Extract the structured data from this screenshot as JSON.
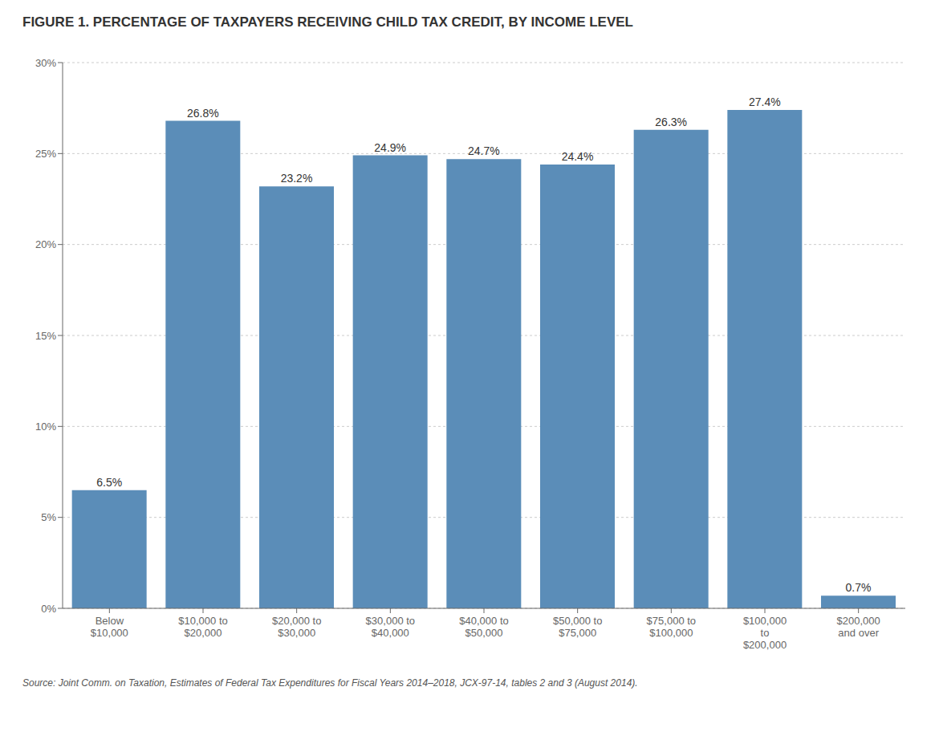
{
  "chart_data": {
    "type": "bar",
    "title": "FIGURE 1. PERCENTAGE OF TAXPAYERS RECEIVING CHILD TAX CREDIT, BY INCOME LEVEL",
    "annotations": [
      "Source: Joint Comm. on Taxation, Estimates of Federal Tax Expenditures for Fiscal Years 2014–2018, JCX-97-14, tables 2 and 3 (August 2014)."
    ],
    "categories": [
      "Below\n$10,000",
      "$10,000 to\n$20,000",
      "$20,000 to\n$30,000",
      "$30,000 to\n$40,000",
      "$40,000 to\n$50,000",
      "$50,000 to\n$75,000",
      "$75,000 to\n$100,000",
      "$100,000\nto\n$200,000",
      "$200,000\nand over"
    ],
    "values": [
      6.5,
      26.8,
      23.2,
      24.9,
      24.7,
      24.4,
      26.3,
      27.4,
      0.7
    ],
    "value_labels": [
      "6.5%",
      "26.8%",
      "23.2%",
      "24.9%",
      "24.7%",
      "24.4%",
      "26.3%",
      "27.4%",
      "0.7%"
    ],
    "data_labels": true,
    "color": "#5b8db8",
    "ylim": [
      0,
      30
    ],
    "yticks": [
      {
        "value": 0,
        "label": "0%"
      },
      {
        "value": 5,
        "label": "5%"
      },
      {
        "value": 10,
        "label": "10%"
      },
      {
        "value": 15,
        "label": "15%"
      },
      {
        "value": 20,
        "label": "20%"
      },
      {
        "value": 25,
        "label": "25%"
      },
      {
        "value": 30,
        "label": "30%"
      }
    ],
    "grid": true
  }
}
